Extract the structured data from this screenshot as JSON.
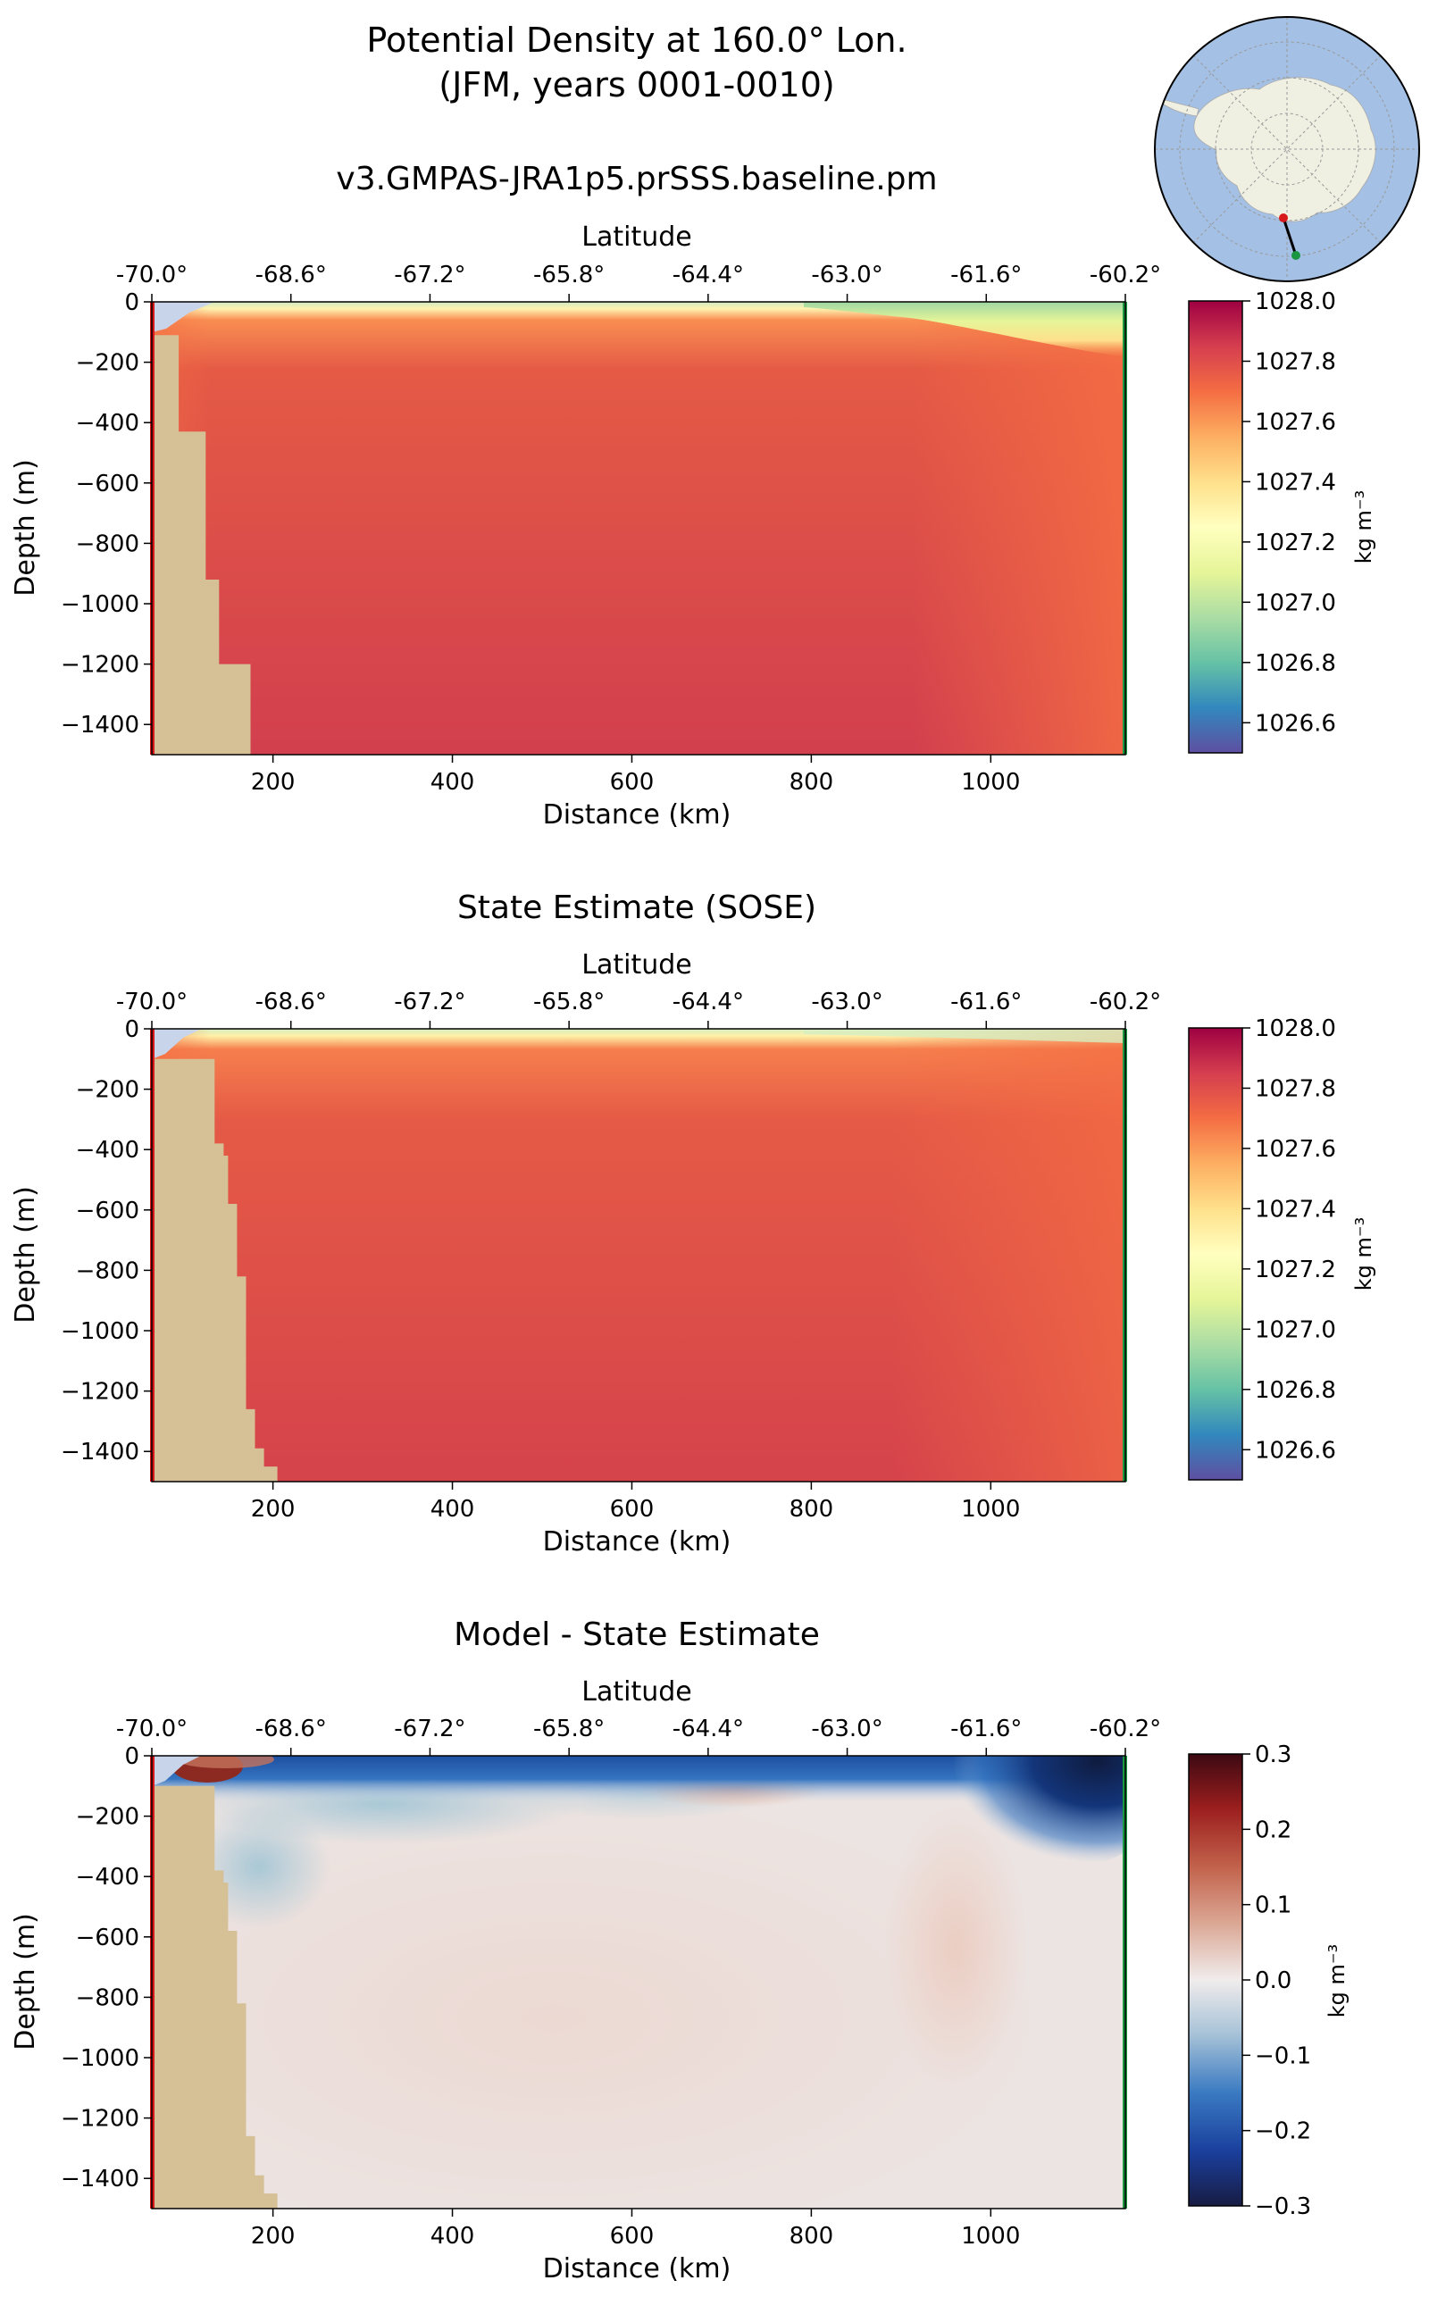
{
  "figure": {
    "title_line1": "Potential Density at 160.0° Lon.",
    "title_line2": "(JFM, years 0001-0010)"
  },
  "colors": {
    "land": "#d6c096",
    "shelf_gap": "#c8d4ea",
    "start_marker": "#d7191c",
    "end_marker": "#1a9641",
    "ocean": "#a4c0e4",
    "continent": "#efefe2"
  },
  "panels": [
    {
      "title": "v3.GMPAS-JRA1p5.prSSS.baseline.pm",
      "top_xlabel": "Latitude",
      "xlabel": "Distance (km)",
      "ylabel": "Depth (m)",
      "colorbar_label": "kg m⁻³",
      "colormap": "spectral_r",
      "clim": [
        1026.5,
        1028.0
      ],
      "cbar_ticks": [
        "1028.0",
        "1027.8",
        "1027.6",
        "1027.4",
        "1027.2",
        "1027.0",
        "1026.8",
        "1026.6"
      ],
      "cbar_tick_values": [
        1028.0,
        1027.8,
        1027.6,
        1027.4,
        1027.2,
        1027.0,
        1026.8,
        1026.6
      ]
    },
    {
      "title": "State Estimate (SOSE)",
      "top_xlabel": "Latitude",
      "xlabel": "Distance (km)",
      "ylabel": "Depth (m)",
      "colorbar_label": "kg m⁻³",
      "colormap": "spectral_r",
      "clim": [
        1026.5,
        1028.0
      ],
      "cbar_ticks": [
        "1028.0",
        "1027.8",
        "1027.6",
        "1027.4",
        "1027.2",
        "1027.0",
        "1026.8",
        "1026.6"
      ],
      "cbar_tick_values": [
        1028.0,
        1027.8,
        1027.6,
        1027.4,
        1027.2,
        1027.0,
        1026.8,
        1026.6
      ]
    },
    {
      "title": "Model - State Estimate",
      "top_xlabel": "Latitude",
      "xlabel": "Distance (km)",
      "ylabel": "Depth (m)",
      "colorbar_label": "kg m⁻³",
      "colormap": "balance",
      "clim": [
        -0.3,
        0.3
      ],
      "cbar_ticks": [
        "0.3",
        "0.2",
        "0.1",
        "0.0",
        "−0.1",
        "−0.2",
        "−0.3"
      ],
      "cbar_tick_values": [
        0.3,
        0.2,
        0.1,
        0.0,
        -0.1,
        -0.2,
        -0.3
      ]
    }
  ],
  "chart_data": [
    {
      "type": "heatmap",
      "title": "v3.GMPAS-JRA1p5.prSSS.baseline.pm",
      "x_range_km": [
        65,
        1150
      ],
      "ylim": [
        -1500,
        0
      ],
      "x_ticks": [
        "200",
        "400",
        "600",
        "800",
        "1000"
      ],
      "x_tick_values": [
        200,
        400,
        600,
        800,
        1000
      ],
      "y_ticks": [
        "0",
        "−200",
        "−400",
        "−600",
        "−800",
        "−1000",
        "−1200",
        "−1400"
      ],
      "y_tick_values": [
        0,
        -200,
        -400,
        -600,
        -800,
        -1000,
        -1200,
        -1400
      ],
      "lat_ticks": [
        "-70.0°",
        "-68.6°",
        "-67.2°",
        "-65.8°",
        "-64.4°",
        "-63.0°",
        "-61.6°",
        "-60.2°"
      ],
      "lat_tick_km": [
        65,
        220,
        375,
        530,
        685,
        840,
        995,
        1150
      ],
      "field": {
        "surface_value": 1026.9,
        "interior_value": 1027.86,
        "outer_value": 1027.66,
        "mixed_layer_depth_m": 55,
        "mixed_layer_offshore_depth_m": 170,
        "offshore_transition_km": 940
      },
      "bathymetry": [
        [
          65,
          -110
        ],
        [
          95,
          -110
        ],
        [
          95,
          -430
        ],
        [
          125,
          -430
        ],
        [
          125,
          -920
        ],
        [
          140,
          -920
        ],
        [
          140,
          -1200
        ],
        [
          175,
          -1200
        ],
        [
          175,
          -1500
        ]
      ]
    },
    {
      "type": "heatmap",
      "title": "State Estimate (SOSE)",
      "x_range_km": [
        65,
        1150
      ],
      "ylim": [
        -1500,
        0
      ],
      "x_ticks": [
        "200",
        "400",
        "600",
        "800",
        "1000"
      ],
      "x_tick_values": [
        200,
        400,
        600,
        800,
        1000
      ],
      "y_ticks": [
        "0",
        "−200",
        "−400",
        "−600",
        "−800",
        "−1000",
        "−1200",
        "−1400"
      ],
      "y_tick_values": [
        0,
        -200,
        -400,
        -600,
        -800,
        -1000,
        -1200,
        -1400
      ],
      "lat_ticks": [
        "-70.0°",
        "-68.6°",
        "-67.2°",
        "-65.8°",
        "-64.4°",
        "-63.0°",
        "-61.6°",
        "-60.2°"
      ],
      "lat_tick_km": [
        65,
        220,
        375,
        530,
        685,
        840,
        995,
        1150
      ],
      "field": {
        "surface_value": 1027.0,
        "interior_value": 1027.82,
        "outer_value": 1027.68,
        "mixed_layer_depth_m": 60,
        "mixed_layer_offshore_depth_m": 70,
        "offshore_transition_km": 920
      },
      "bathymetry": [
        [
          65,
          -100
        ],
        [
          135,
          -100
        ],
        [
          135,
          -380
        ],
        [
          145,
          -380
        ],
        [
          145,
          -420
        ],
        [
          150,
          -420
        ],
        [
          150,
          -580
        ],
        [
          160,
          -580
        ],
        [
          160,
          -820
        ],
        [
          170,
          -820
        ],
        [
          170,
          -1260
        ],
        [
          180,
          -1260
        ],
        [
          180,
          -1390
        ],
        [
          190,
          -1390
        ],
        [
          190,
          -1450
        ],
        [
          205,
          -1450
        ],
        [
          205,
          -1500
        ]
      ]
    },
    {
      "type": "heatmap",
      "title": "Model - State Estimate",
      "x_range_km": [
        65,
        1150
      ],
      "ylim": [
        -1500,
        0
      ],
      "x_ticks": [
        "200",
        "400",
        "600",
        "800",
        "1000"
      ],
      "x_tick_values": [
        200,
        400,
        600,
        800,
        1000
      ],
      "y_ticks": [
        "0",
        "−200",
        "−400",
        "−600",
        "−800",
        "−1000",
        "−1200",
        "−1400"
      ],
      "y_tick_values": [
        0,
        -200,
        -400,
        -600,
        -800,
        -1000,
        -1200,
        -1400
      ],
      "lat_ticks": [
        "-70.0°",
        "-68.6°",
        "-67.2°",
        "-65.8°",
        "-64.4°",
        "-63.0°",
        "-61.6°",
        "-60.2°"
      ],
      "lat_tick_km": [
        65,
        220,
        375,
        530,
        685,
        840,
        995,
        1150
      ],
      "features": [
        {
          "kind": "surface_negative",
          "value": -0.2,
          "depth_m": [
            0,
            40
          ]
        },
        {
          "kind": "offshore_negative",
          "value": -0.3,
          "x_km": [
            1000,
            1150
          ],
          "depth_m": [
            0,
            200
          ]
        },
        {
          "kind": "subsurface_negative",
          "value": -0.06,
          "x_km": [
            150,
            450
          ],
          "depth_m": [
            150,
            450
          ]
        },
        {
          "kind": "subsurface_positive",
          "value": 0.05,
          "x_km": [
            650,
            880
          ],
          "depth_m": [
            40,
            140
          ]
        },
        {
          "kind": "interior_positive",
          "value": 0.02,
          "x_km": [
            200,
            1100
          ],
          "depth_m": [
            300,
            1500
          ]
        },
        {
          "kind": "shelf_positive",
          "value": 0.25,
          "x_km": [
            95,
            150
          ],
          "depth_m": [
            0,
            50
          ]
        }
      ],
      "bathymetry": [
        [
          65,
          -100
        ],
        [
          135,
          -100
        ],
        [
          135,
          -380
        ],
        [
          145,
          -380
        ],
        [
          145,
          -420
        ],
        [
          150,
          -420
        ],
        [
          150,
          -580
        ],
        [
          160,
          -580
        ],
        [
          160,
          -820
        ],
        [
          170,
          -820
        ],
        [
          170,
          -1260
        ],
        [
          180,
          -1260
        ],
        [
          180,
          -1390
        ],
        [
          190,
          -1390
        ],
        [
          190,
          -1450
        ],
        [
          205,
          -1450
        ],
        [
          205,
          -1500
        ]
      ]
    }
  ]
}
